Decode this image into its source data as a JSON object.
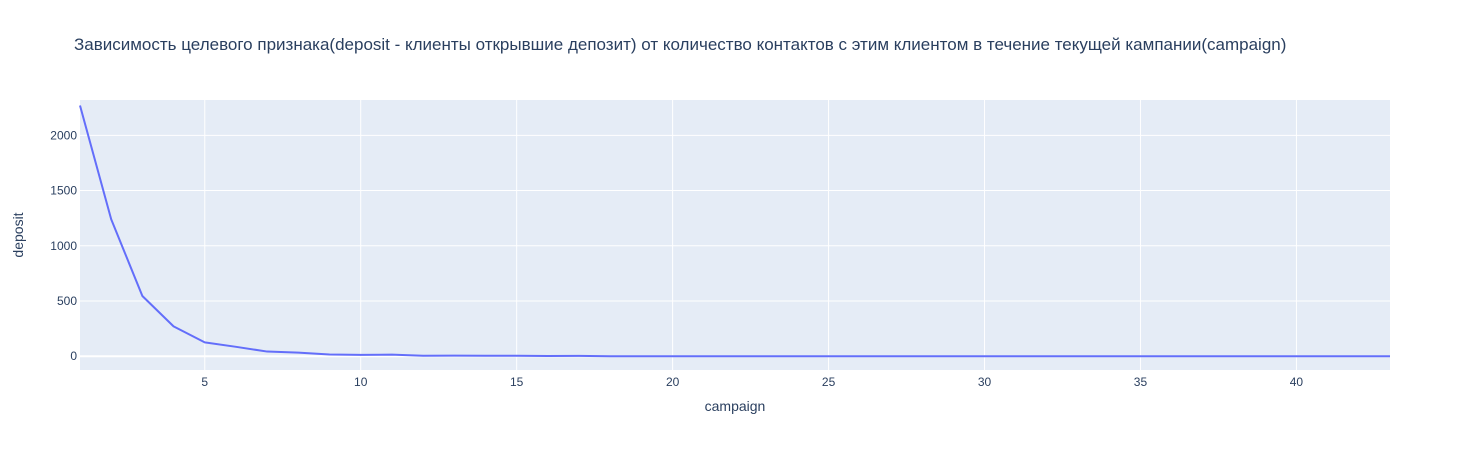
{
  "chart_data": {
    "type": "line",
    "title": "Зависимость целевого признака(deposit - клиенты открывшие депозит) от количество контактов с этим клиентом в течение текущей кампании(campaign)",
    "xlabel": "campaign",
    "ylabel": "deposit",
    "xlim": [
      1,
      43
    ],
    "ylim": [
      -125,
      2320
    ],
    "x_ticks": [
      5,
      10,
      15,
      20,
      25,
      30,
      35,
      40
    ],
    "y_ticks": [
      0,
      500,
      1000,
      1500,
      2000
    ],
    "grid": true,
    "series": [
      {
        "color": "#636efa",
        "x": [
          1,
          2,
          3,
          4,
          5,
          6,
          7,
          8,
          9,
          10,
          11,
          12,
          13,
          14,
          15,
          16,
          17,
          18,
          19,
          20,
          21,
          22,
          23,
          24,
          25,
          26,
          27,
          28,
          29,
          30,
          31,
          32,
          33,
          34,
          35,
          36,
          37,
          38,
          39,
          40,
          41,
          42,
          43
        ],
        "values": [
          2270,
          1240,
          545,
          270,
          125,
          85,
          42,
          32,
          15,
          12,
          14,
          4,
          5,
          4,
          4,
          2,
          3,
          0,
          0,
          0,
          0,
          0,
          0,
          0,
          0,
          0,
          0,
          0,
          0,
          0,
          0,
          0,
          0,
          0,
          0,
          0,
          0,
          0,
          0,
          0,
          0,
          0,
          0
        ]
      }
    ]
  },
  "colors": {
    "plot_background": "#e5ecf6",
    "grid": "#ffffff",
    "text": "#2a3f5f"
  }
}
